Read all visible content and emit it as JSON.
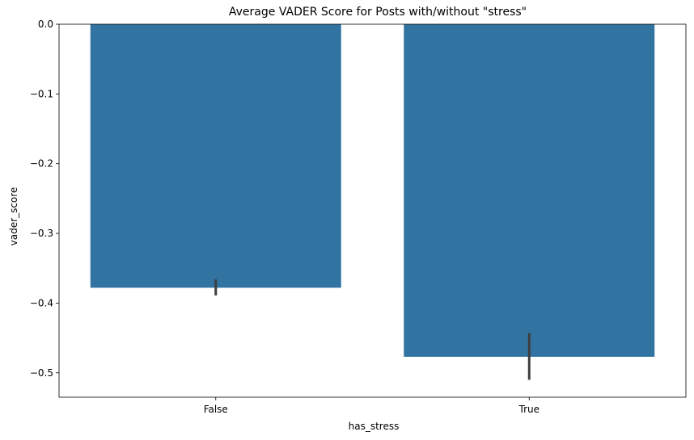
{
  "chart_data": {
    "type": "bar",
    "title": "Average VADER Score for Posts with/without \"stress\"",
    "xlabel": "has_stress",
    "ylabel": "vader_score",
    "categories": [
      "False",
      "True"
    ],
    "values": [
      -0.378,
      -0.477
    ],
    "error_bars": [
      {
        "low": -0.389,
        "high": -0.366
      },
      {
        "low": -0.51,
        "high": -0.443
      }
    ],
    "ylim": [
      -0.535,
      0.0
    ],
    "yticks": [
      0.0,
      -0.1,
      -0.2,
      -0.3,
      -0.4,
      -0.5
    ],
    "ytick_labels": [
      "0.0",
      "−0.1",
      "−0.2",
      "−0.3",
      "−0.4",
      "−0.5"
    ],
    "grid": false,
    "legend": "none",
    "colors": {
      "bar": "#3274a1",
      "error_bar": "#3d3d3d"
    }
  }
}
